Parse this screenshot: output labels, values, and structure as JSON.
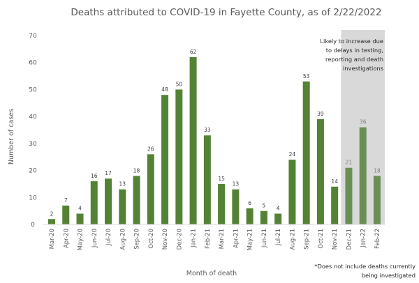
{
  "chart_data": {
    "type": "bar",
    "title": "Deaths attributed to COVID-19 in Fayette County, as of 2/22/2022",
    "xlabel": "Month of death",
    "ylabel": "Number of cases",
    "ylim": [
      0,
      70
    ],
    "yticks": [
      0,
      10,
      20,
      30,
      40,
      50,
      60,
      70
    ],
    "grid": false,
    "categories": [
      "Mar-20",
      "Apr-20",
      "May-20",
      "Jun-20",
      "Jul-20",
      "Aug-20",
      "Sep-20",
      "Oct-20",
      "Nov-20",
      "Dec-20",
      "Jan-21",
      "Feb-21",
      "Mar-21",
      "Apr-21",
      "May-21",
      "Jun-21",
      "Jul-21",
      "Aug-21",
      "Sep-21",
      "Oct-21",
      "Nov-21",
      "Dec-21",
      "Jan-22",
      "Feb-22"
    ],
    "values": [
      2,
      7,
      4,
      16,
      17,
      13,
      18,
      26,
      48,
      50,
      62,
      33,
      15,
      13,
      6,
      5,
      4,
      24,
      53,
      39,
      14,
      21,
      36,
      18
    ],
    "provisional_from_index": 21,
    "colors": {
      "bar": "#548235",
      "bar_provisional": "#6a8f55",
      "shade": "#d9d9d9",
      "text": "#595959"
    },
    "annotations": {
      "shaded_note": [
        "Likely to increase due",
        "to delays in testing,",
        "reporting and death",
        "investigations"
      ],
      "footnote": [
        "*Does not include deaths currently",
        "being investigated"
      ]
    }
  }
}
